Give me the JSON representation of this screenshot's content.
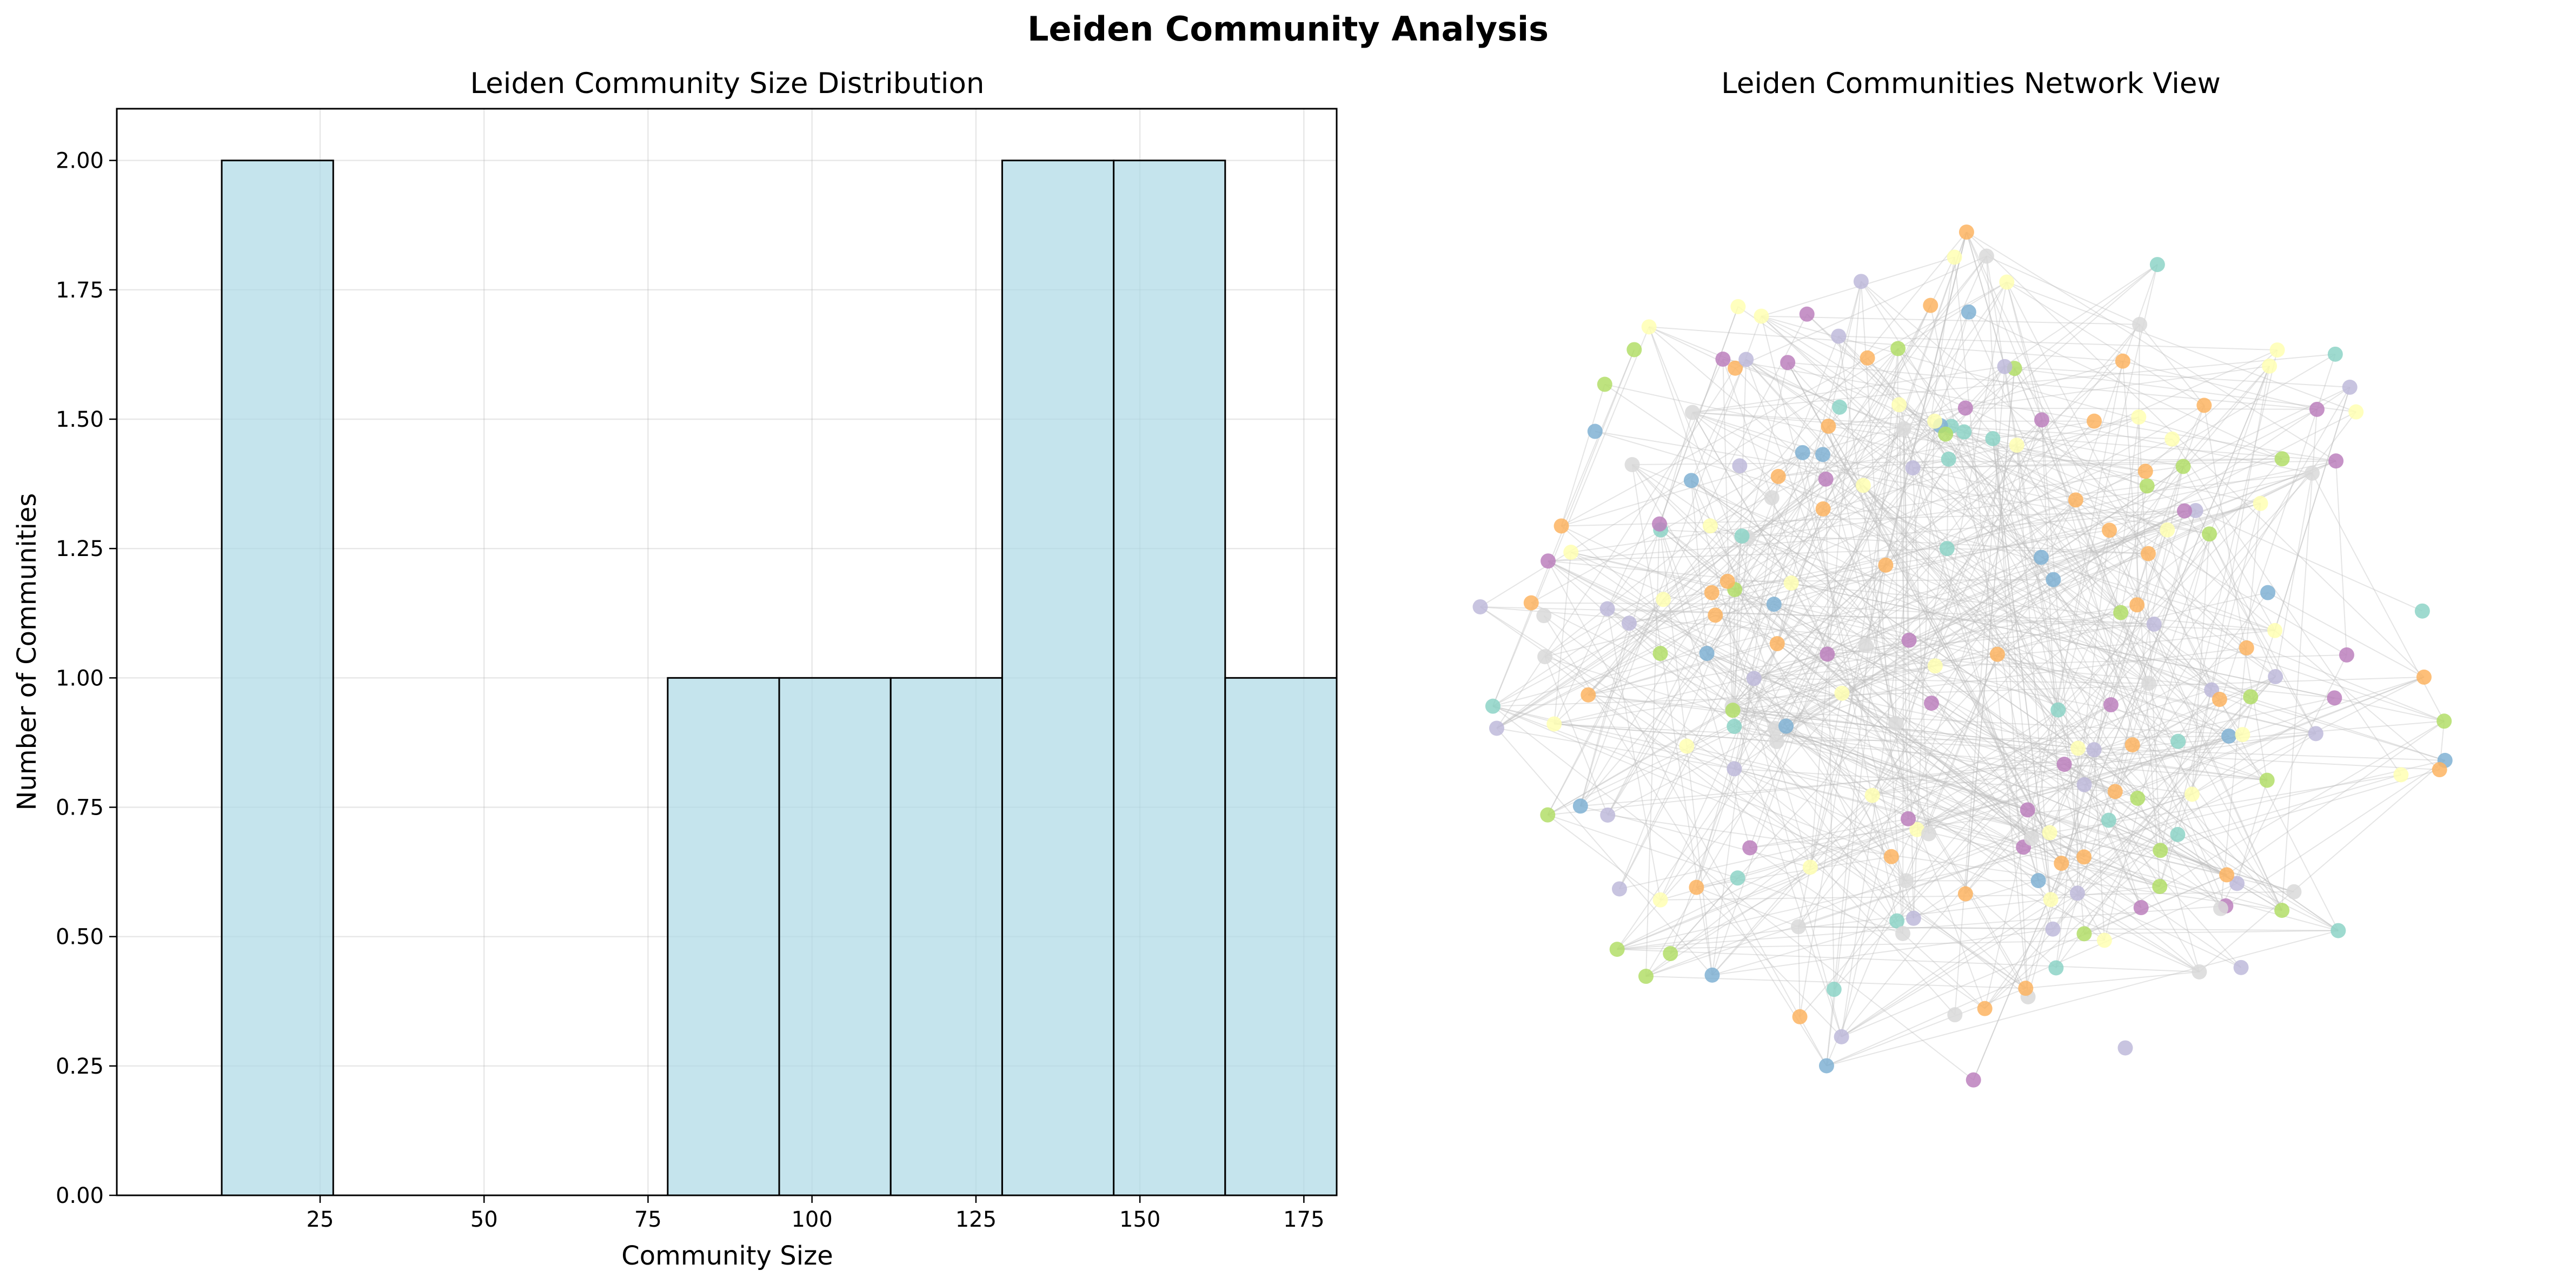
{
  "figure": {
    "suptitle": "Leiden Community Analysis"
  },
  "chart_data": [
    {
      "type": "bar",
      "title": "Leiden Community Size Distribution",
      "xlabel": "Community Size",
      "ylabel": "Number of Communities",
      "bin_edges": [
        10,
        27,
        44,
        61,
        78,
        95,
        112,
        129,
        146,
        163,
        180
      ],
      "values": [
        2,
        0,
        0,
        0,
        1,
        1,
        1,
        2,
        2,
        1
      ],
      "xlim": [
        -6,
        180
      ],
      "ylim": [
        0,
        2.1
      ],
      "xticks": [
        25,
        50,
        75,
        100,
        125,
        150,
        175
      ],
      "xtick_labels": [
        "25",
        "50",
        "75",
        "100",
        "125",
        "150",
        "175"
      ],
      "yticks": [
        0,
        0.25,
        0.5,
        0.75,
        1.0,
        1.25,
        1.5,
        1.75,
        2.0
      ],
      "ytick_labels": [
        "0.00",
        "0.25",
        "0.50",
        "0.75",
        "1.00",
        "1.25",
        "1.50",
        "1.75",
        "2.00"
      ],
      "grid": true,
      "bar_color": "#add8e6",
      "edge_color": "#000000"
    },
    {
      "type": "scatter",
      "title": "Leiden Communities Network View",
      "axes_visible": false,
      "node_colors": [
        "#8dd3c7",
        "#ffffb3",
        "#bebada",
        "#80b1d3",
        "#fdb462",
        "#b3de69",
        "#bc80bd",
        "#d9d9d9"
      ],
      "edge_color": "#bdbdbd",
      "node_count": 220,
      "edge_count": 640
    }
  ]
}
